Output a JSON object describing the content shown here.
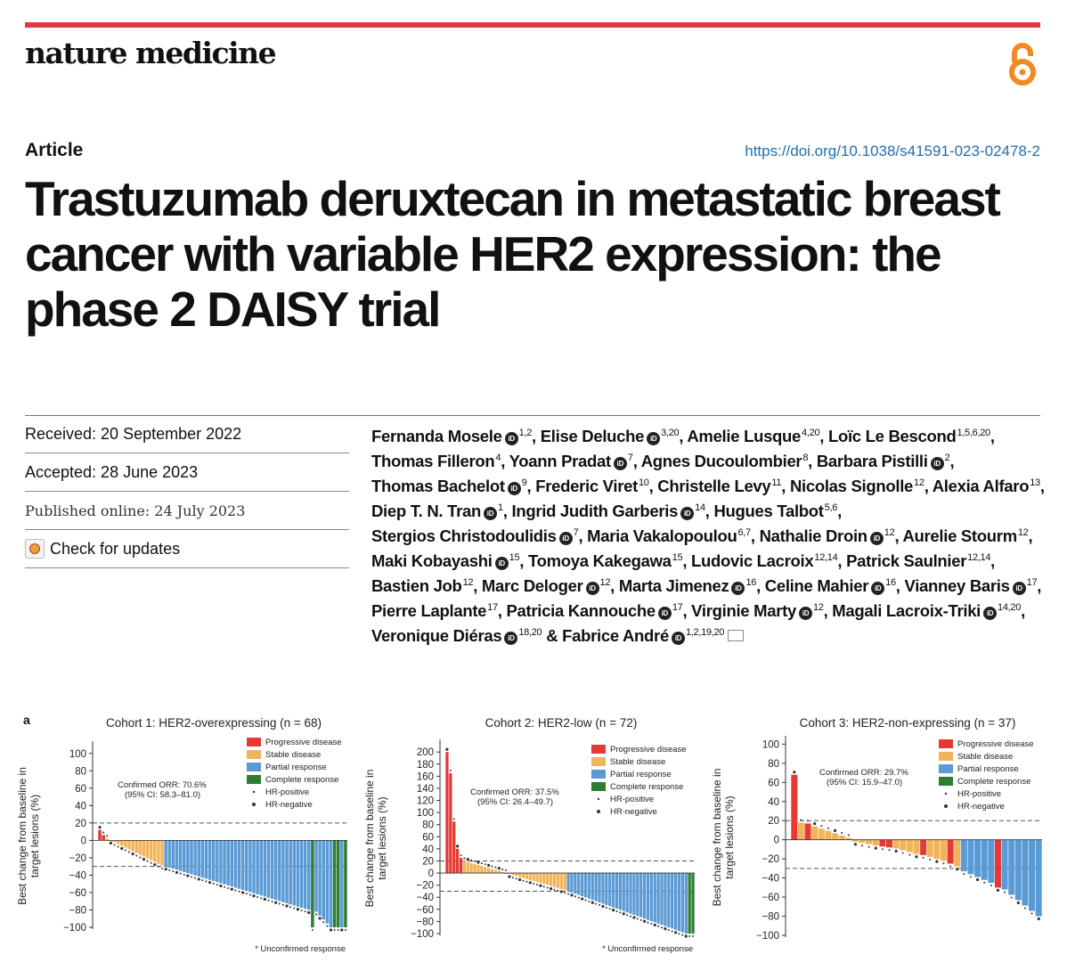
{
  "header": {
    "journal": "nature medicine",
    "article_type": "Article",
    "doi": "https://doi.org/10.1038/s41591-023-02478-2"
  },
  "title": "Trastuzumab deruxtecan in metastatic breast cancer with variable HER2 expression: the phase 2 DAISY trial",
  "meta": {
    "received": "Received: 20 September 2022",
    "accepted": "Accepted: 28 June 2023",
    "published": "Published online: 24 July 2023",
    "check_updates": "Check for updates"
  },
  "orcid_label": "iD",
  "authors": [
    {
      "name": "Fernanda Mosele",
      "orcid": true,
      "aff": "1,2"
    },
    {
      "name": "Elise Deluche",
      "orcid": true,
      "aff": "3,20"
    },
    {
      "name": "Amelie Lusque",
      "orcid": false,
      "aff": "4,20"
    },
    {
      "name": "Loïc Le Bescond",
      "orcid": false,
      "aff": "1,5,6,20"
    },
    {
      "name": "Thomas Filleron",
      "orcid": false,
      "aff": "4"
    },
    {
      "name": "Yoann Pradat",
      "orcid": true,
      "aff": "7"
    },
    {
      "name": "Agnes Ducoulombier",
      "orcid": false,
      "aff": "8"
    },
    {
      "name": "Barbara Pistilli",
      "orcid": true,
      "aff": "2"
    },
    {
      "name": "Thomas Bachelot",
      "orcid": true,
      "aff": "9"
    },
    {
      "name": "Frederic Viret",
      "orcid": false,
      "aff": "10"
    },
    {
      "name": "Christelle Levy",
      "orcid": false,
      "aff": "11"
    },
    {
      "name": "Nicolas Signolle",
      "orcid": false,
      "aff": "12"
    },
    {
      "name": "Alexia Alfaro",
      "orcid": false,
      "aff": "13"
    },
    {
      "name": "Diep T. N. Tran",
      "orcid": true,
      "aff": "1"
    },
    {
      "name": "Ingrid Judith Garberis",
      "orcid": true,
      "aff": "14"
    },
    {
      "name": "Hugues Talbot",
      "orcid": false,
      "aff": "5,6"
    },
    {
      "name": "Stergios Christodoulidis",
      "orcid": true,
      "aff": "7"
    },
    {
      "name": "Maria Vakalopoulou",
      "orcid": false,
      "aff": "6,7"
    },
    {
      "name": "Nathalie Droin",
      "orcid": true,
      "aff": "12"
    },
    {
      "name": "Aurelie Stourm",
      "orcid": false,
      "aff": "12"
    },
    {
      "name": "Maki Kobayashi",
      "orcid": true,
      "aff": "15"
    },
    {
      "name": "Tomoya Kakegawa",
      "orcid": false,
      "aff": "15"
    },
    {
      "name": "Ludovic Lacroix",
      "orcid": false,
      "aff": "12,14"
    },
    {
      "name": "Patrick Saulnier",
      "orcid": false,
      "aff": "12,14"
    },
    {
      "name": "Bastien Job",
      "orcid": false,
      "aff": "12"
    },
    {
      "name": "Marc Deloger",
      "orcid": true,
      "aff": "12"
    },
    {
      "name": "Marta Jimenez",
      "orcid": true,
      "aff": "16"
    },
    {
      "name": "Celine Mahier",
      "orcid": true,
      "aff": "16"
    },
    {
      "name": "Vianney Baris",
      "orcid": true,
      "aff": "17"
    },
    {
      "name": "Pierre Laplante",
      "orcid": false,
      "aff": "17"
    },
    {
      "name": "Patricia Kannouche",
      "orcid": true,
      "aff": "17"
    },
    {
      "name": "Virginie Marty",
      "orcid": true,
      "aff": "12"
    },
    {
      "name": "Magali Lacroix-Triki",
      "orcid": true,
      "aff": "14,20"
    },
    {
      "name": "Veronique Diéras",
      "orcid": true,
      "aff": "18,20"
    },
    {
      "name": "Fabrice André",
      "orcid": true,
      "aff": "1,2,19,20",
      "email": true
    }
  ],
  "figure_label": "a",
  "colors": {
    "pd": "#e53935",
    "sd": "#f2b45a",
    "pr": "#5b9bd5",
    "cr": "#2e7d32",
    "accent": "#e23a3e",
    "link": "#1e6fb0"
  },
  "chart_data": [
    {
      "type": "bar",
      "title": "Cohort 1: HER2-overexpressing (n = 68)",
      "ylabel": "Best change from baseline in target lesions (%)",
      "yticks": [
        100,
        80,
        60,
        40,
        20,
        0,
        -20,
        -40,
        -60,
        -80,
        -100
      ],
      "ylim": [
        -100,
        110
      ],
      "reference_lines": [
        20,
        -30
      ],
      "orr": [
        "Confirmed ORR: 70.6%",
        "(95% CI: 58.3–81.0)"
      ],
      "legend": [
        "Progressive disease",
        "Stable disease",
        "Partial response",
        "Complete response",
        "HR-positive",
        "HR-negative"
      ],
      "footnote": "* Unconfirmed response",
      "segments": [
        {
          "type": "pd",
          "count": 2,
          "from": 12,
          "to": 6
        },
        {
          "type": "sd",
          "count": 16,
          "from": 2,
          "to": -29
        },
        {
          "type": "pr",
          "count": 40,
          "from": -30,
          "to": -80
        },
        {
          "type": "cr",
          "count": 1,
          "from": -100,
          "to": -100
        },
        {
          "type": "pr",
          "count": 5,
          "from": -82,
          "to": -100
        },
        {
          "type": "cr",
          "count": 2,
          "from": -100,
          "to": -100
        },
        {
          "type": "pr",
          "count": 1,
          "from": -100,
          "to": -100
        },
        {
          "type": "cr",
          "count": 1,
          "from": -100,
          "to": -100
        }
      ]
    },
    {
      "type": "bar",
      "title": "Cohort 2: HER2-low (n = 72)",
      "ylabel": "Best change from baseline in target lesions (%)",
      "yticks": [
        200,
        180,
        160,
        140,
        120,
        100,
        80,
        60,
        40,
        20,
        0,
        -20,
        -40,
        -60,
        -80,
        -100
      ],
      "ylim": [
        -100,
        215
      ],
      "reference_lines": [
        20,
        -30
      ],
      "orr": [
        "Confirmed ORR: 37.5%",
        "(95% CI: 26.4–49.7)"
      ],
      "legend": [
        "Progressive disease",
        "Stable disease",
        "Partial response",
        "Complete response",
        "HR-positive",
        "HR-negative"
      ],
      "footnote": "* Unconfirmed response",
      "segments": [
        {
          "type": "pd",
          "count": 1,
          "from": 200,
          "to": 200
        },
        {
          "type": "pd",
          "count": 1,
          "from": 165,
          "to": 165
        },
        {
          "type": "pd",
          "count": 1,
          "from": 85,
          "to": 85
        },
        {
          "type": "pd",
          "count": 2,
          "from": 40,
          "to": 25
        },
        {
          "type": "sd",
          "count": 30,
          "from": 20,
          "to": -28
        },
        {
          "type": "pr",
          "count": 35,
          "from": -30,
          "to": -100
        },
        {
          "type": "cr",
          "count": 2,
          "from": -100,
          "to": -100
        }
      ]
    },
    {
      "type": "bar",
      "title": "Cohort 3: HER2-non-expressing (n = 37)",
      "ylabel": "Best change from baseline in target lesions (%)",
      "yticks": [
        100,
        80,
        60,
        40,
        20,
        0,
        -20,
        -40,
        -60,
        -80,
        -100
      ],
      "ylim": [
        -100,
        105
      ],
      "reference_lines": [
        20,
        -30
      ],
      "orr": [
        "Confirmed ORR: 29.7%",
        "(95% CI: 15.9–47.0)"
      ],
      "legend": [
        "Progressive disease",
        "Stable disease",
        "Partial response",
        "Complete response",
        "HR-positive",
        "HR-negative"
      ],
      "footnote": "",
      "segments": [
        {
          "type": "pd",
          "count": 1,
          "from": 68,
          "to": 68
        },
        {
          "type": "sd",
          "count": 1,
          "from": 18,
          "to": 18
        },
        {
          "type": "pd",
          "count": 1,
          "from": 17,
          "to": 17
        },
        {
          "type": "sd",
          "count": 6,
          "from": 14,
          "to": 2
        },
        {
          "type": "sd",
          "count": 4,
          "from": -2,
          "to": -6
        },
        {
          "type": "pd",
          "count": 2,
          "from": -7,
          "to": -8
        },
        {
          "type": "sd",
          "count": 4,
          "from": -9,
          "to": -15
        },
        {
          "type": "pd",
          "count": 1,
          "from": -16,
          "to": -16
        },
        {
          "type": "sd",
          "count": 3,
          "from": -18,
          "to": -22
        },
        {
          "type": "pd",
          "count": 1,
          "from": -25,
          "to": -25
        },
        {
          "type": "sd",
          "count": 1,
          "from": -28,
          "to": -28
        },
        {
          "type": "pr",
          "count": 5,
          "from": -33,
          "to": -45
        },
        {
          "type": "pd",
          "count": 1,
          "from": -50,
          "to": -50
        },
        {
          "type": "pr",
          "count": 6,
          "from": -52,
          "to": -80
        }
      ]
    }
  ]
}
